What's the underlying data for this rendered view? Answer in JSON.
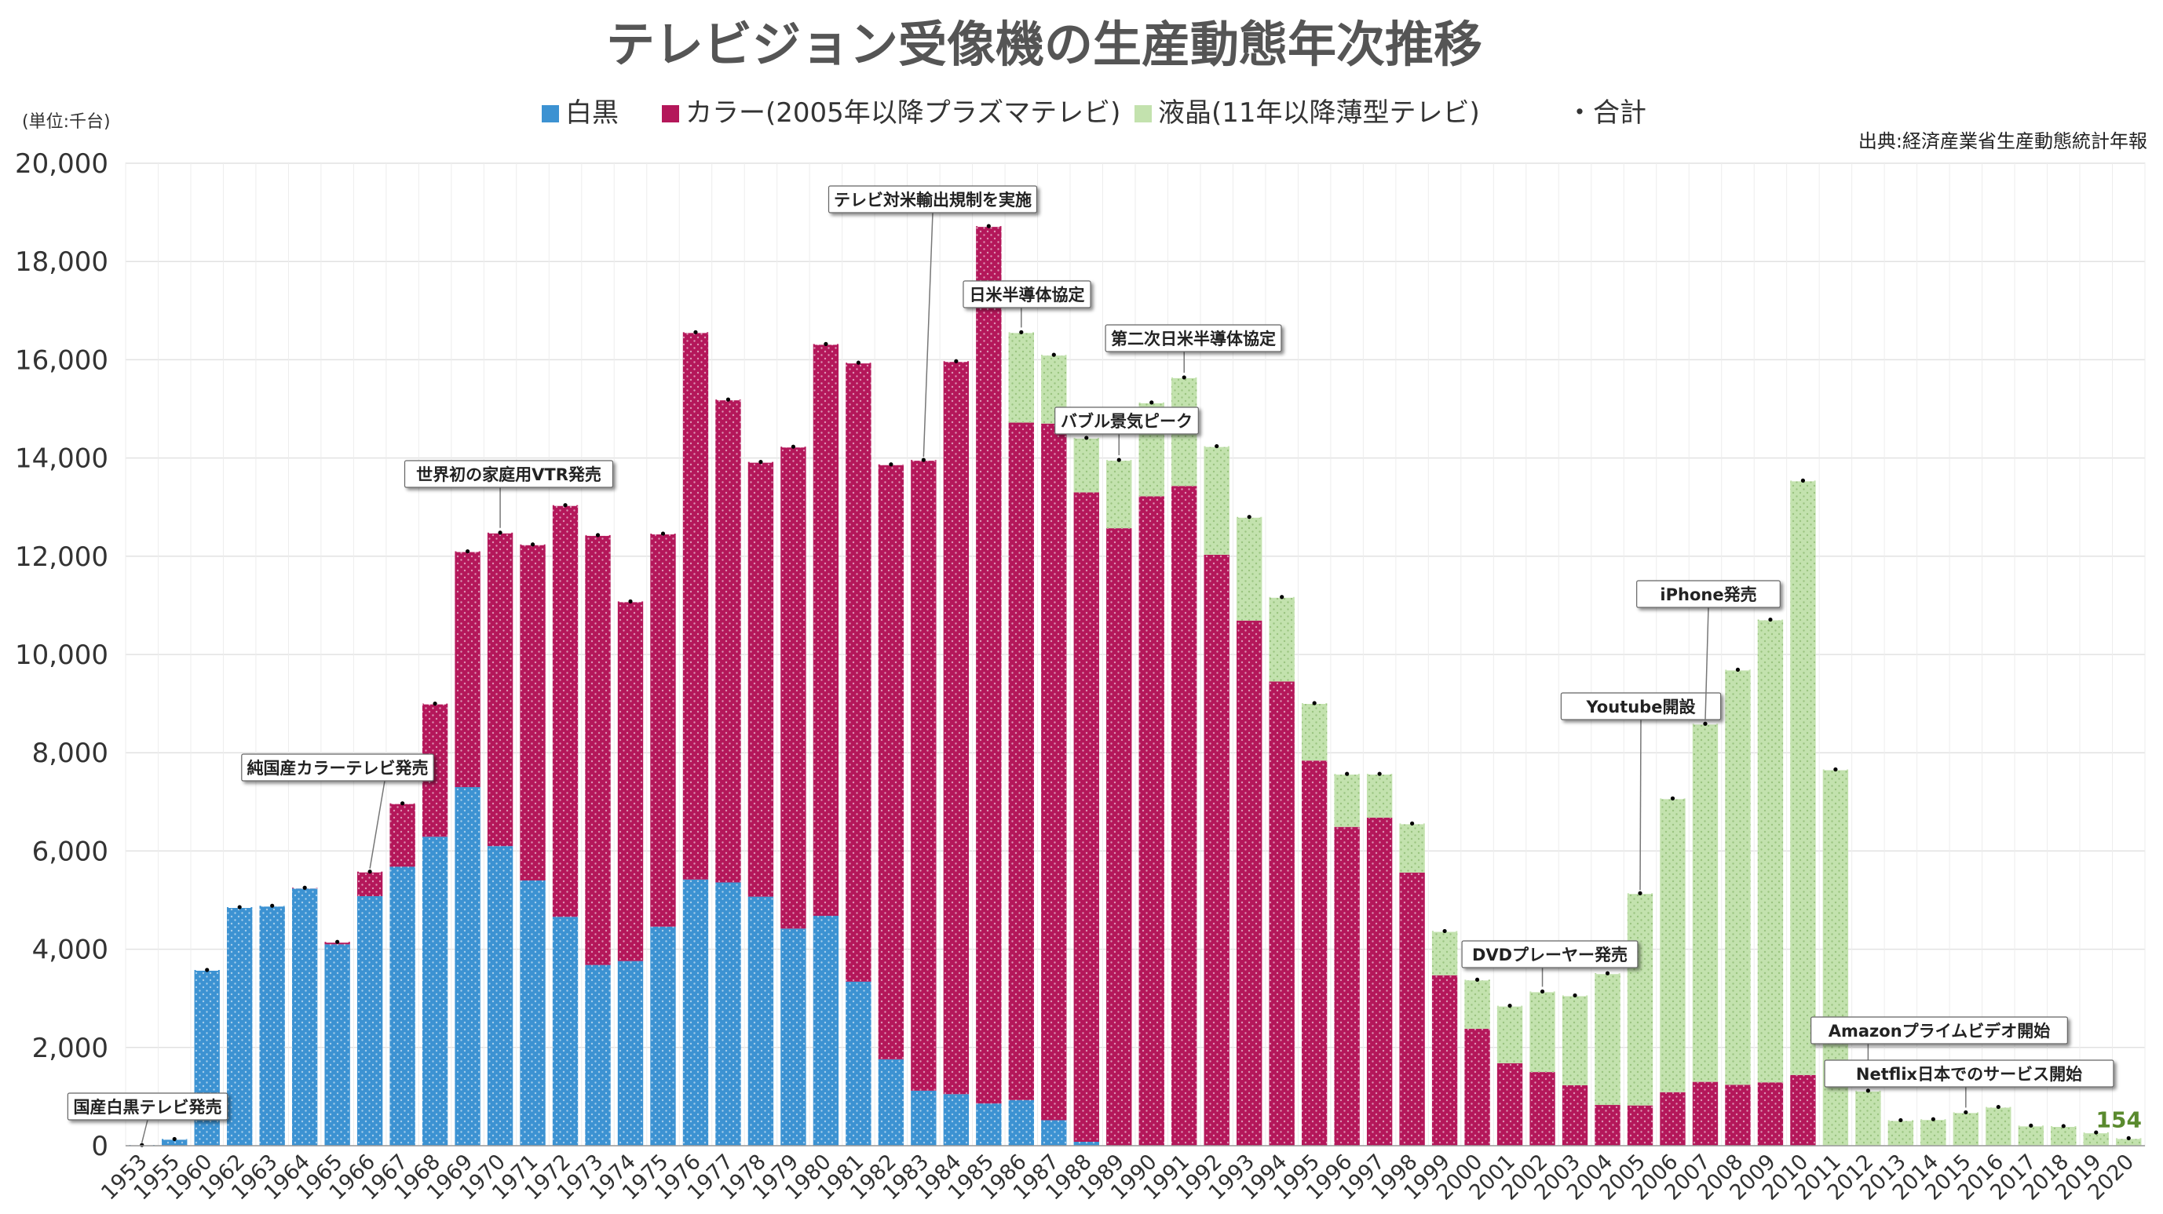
{
  "chart_data": {
    "type": "bar",
    "stacked": true,
    "title": "テレビジョン受像機の生産動態年次推移",
    "unit_label": "(単位:千台)",
    "source": "出典:経済産業省生産動態統計年報",
    "ylim": [
      0,
      20000
    ],
    "y_ticks": [
      "0",
      "2,000",
      "4,000",
      "6,000",
      "8,000",
      "10,000",
      "12,000",
      "14,000",
      "16,000",
      "18,000",
      "20,000"
    ],
    "grid": true,
    "legend_position": "top-center",
    "legend": [
      {
        "label": "白黒",
        "color": "#3c92d2",
        "marker": "square"
      },
      {
        "label": "カラー(2005年以降プラズマテレビ)",
        "color": "#b4175a",
        "marker": "square"
      },
      {
        "label": "液晶(11年以降薄型テレビ)",
        "color": "#c3e2ae",
        "marker": "square"
      },
      {
        "label": "・合計",
        "color": "#000000",
        "marker": "none"
      }
    ],
    "categories": [
      "1953",
      "1955",
      "1960",
      "1962",
      "1963",
      "1964",
      "1965",
      "1966",
      "1967",
      "1968",
      "1969",
      "1970",
      "1971",
      "1972",
      "1973",
      "1974",
      "1975",
      "1976",
      "1977",
      "1978",
      "1979",
      "1980",
      "1981",
      "1982",
      "1983",
      "1984",
      "1985",
      "1986",
      "1987",
      "1988",
      "1989",
      "1990",
      "1991",
      "1992",
      "1993",
      "1994",
      "1995",
      "1996",
      "1997",
      "1998",
      "1999",
      "2000",
      "2001",
      "2002",
      "2003",
      "2004",
      "2005",
      "2006",
      "2007",
      "2008",
      "2009",
      "2010",
      "2011",
      "2012",
      "2013",
      "2014",
      "2015",
      "2016",
      "2017",
      "2018",
      "2019",
      "2020"
    ],
    "series": [
      {
        "name": "白黒",
        "color": "#3c92d2",
        "values": [
          15,
          137,
          3578,
          4857,
          4885,
          5237,
          4100,
          5080,
          5680,
          6290,
          7300,
          6100,
          5400,
          4660,
          3680,
          3760,
          4460,
          5420,
          5360,
          5070,
          4420,
          4680,
          3340,
          1760,
          1120,
          1050,
          860,
          930,
          520,
          80,
          0,
          0,
          0,
          0,
          0,
          0,
          0,
          0,
          0,
          0,
          0,
          0,
          0,
          0,
          0,
          0,
          0,
          0,
          0,
          0,
          0,
          0,
          0,
          0,
          0,
          0,
          0,
          0,
          0,
          0,
          0,
          0
        ]
      },
      {
        "name": "カラー(2005年以降プラズマテレビ)",
        "color": "#b4175a",
        "values": [
          0,
          0,
          0,
          0,
          0,
          15,
          50,
          500,
          1290,
          2710,
          4800,
          6380,
          6840,
          8380,
          8750,
          7320,
          8000,
          11140,
          9830,
          8850,
          9810,
          11640,
          12600,
          12110,
          12840,
          14920,
          17860,
          13790,
          14180,
          13220,
          12570,
          13220,
          13430,
          12030,
          10690,
          9450,
          7840,
          6490,
          6680,
          5560,
          3470,
          2380,
          1680,
          1500,
          1230,
          830,
          820,
          1090,
          1300,
          1240,
          1290,
          1440,
          0,
          0,
          0,
          0,
          0,
          0,
          0,
          0,
          0,
          0
        ]
      },
      {
        "name": "液晶(11年以降薄型テレビ)",
        "color": "#c3e2ae",
        "values": [
          0,
          0,
          0,
          0,
          0,
          0,
          0,
          0,
          0,
          0,
          0,
          0,
          0,
          0,
          0,
          0,
          0,
          0,
          0,
          0,
          0,
          0,
          0,
          0,
          0,
          0,
          0,
          1840,
          1400,
          1110,
          1390,
          1910,
          2210,
          2210,
          2110,
          1720,
          1170,
          1080,
          890,
          1000,
          900,
          1000,
          1170,
          1640,
          1830,
          2680,
          4320,
          5980,
          7290,
          8450,
          9420,
          12100,
          7660,
          1120,
          520,
          540,
          680,
          790,
          410,
          400,
          270,
          154
        ]
      }
    ],
    "totals": [
      15,
      137,
      3578,
      4857,
      4885,
      5252,
      4150,
      5580,
      6970,
      9000,
      12100,
      12480,
      12240,
      13040,
      12430,
      11080,
      12460,
      16560,
      15190,
      13920,
      14230,
      16320,
      15940,
      13870,
      13960,
      15970,
      18720,
      16560,
      16100,
      14410,
      13960,
      15130,
      15640,
      14240,
      12800,
      11170,
      9010,
      7570,
      7570,
      6560,
      4370,
      3380,
      2850,
      3140,
      3060,
      3510,
      5140,
      7070,
      8590,
      9690,
      10710,
      13540,
      7660,
      1120,
      520,
      540,
      680,
      790,
      410,
      400,
      270,
      154
    ],
    "last_value_label": "154",
    "annotations": [
      {
        "text": "国産白黒テレビ発売",
        "year": "1953"
      },
      {
        "text": "純国産カラーテレビ発売",
        "year": "1966"
      },
      {
        "text": "世界初の家庭用VTR発売",
        "year": "1970"
      },
      {
        "text": "テレビ対米輸出規制を実施",
        "year": "1983"
      },
      {
        "text": "日米半導体協定",
        "year": "1986"
      },
      {
        "text": "第二次日米半導体協定",
        "year": "1991"
      },
      {
        "text": "バブル景気ピーク",
        "year": "1989"
      },
      {
        "text": "DVDプレーヤー発売",
        "year": "2002"
      },
      {
        "text": "Youtube開設",
        "year": "2005"
      },
      {
        "text": "iPhone発売",
        "year": "2007"
      },
      {
        "text": "Amazonプライムビデオ開始",
        "year": "2012"
      },
      {
        "text": "Netflix日本でのサービス開始",
        "year": "2015"
      }
    ]
  }
}
